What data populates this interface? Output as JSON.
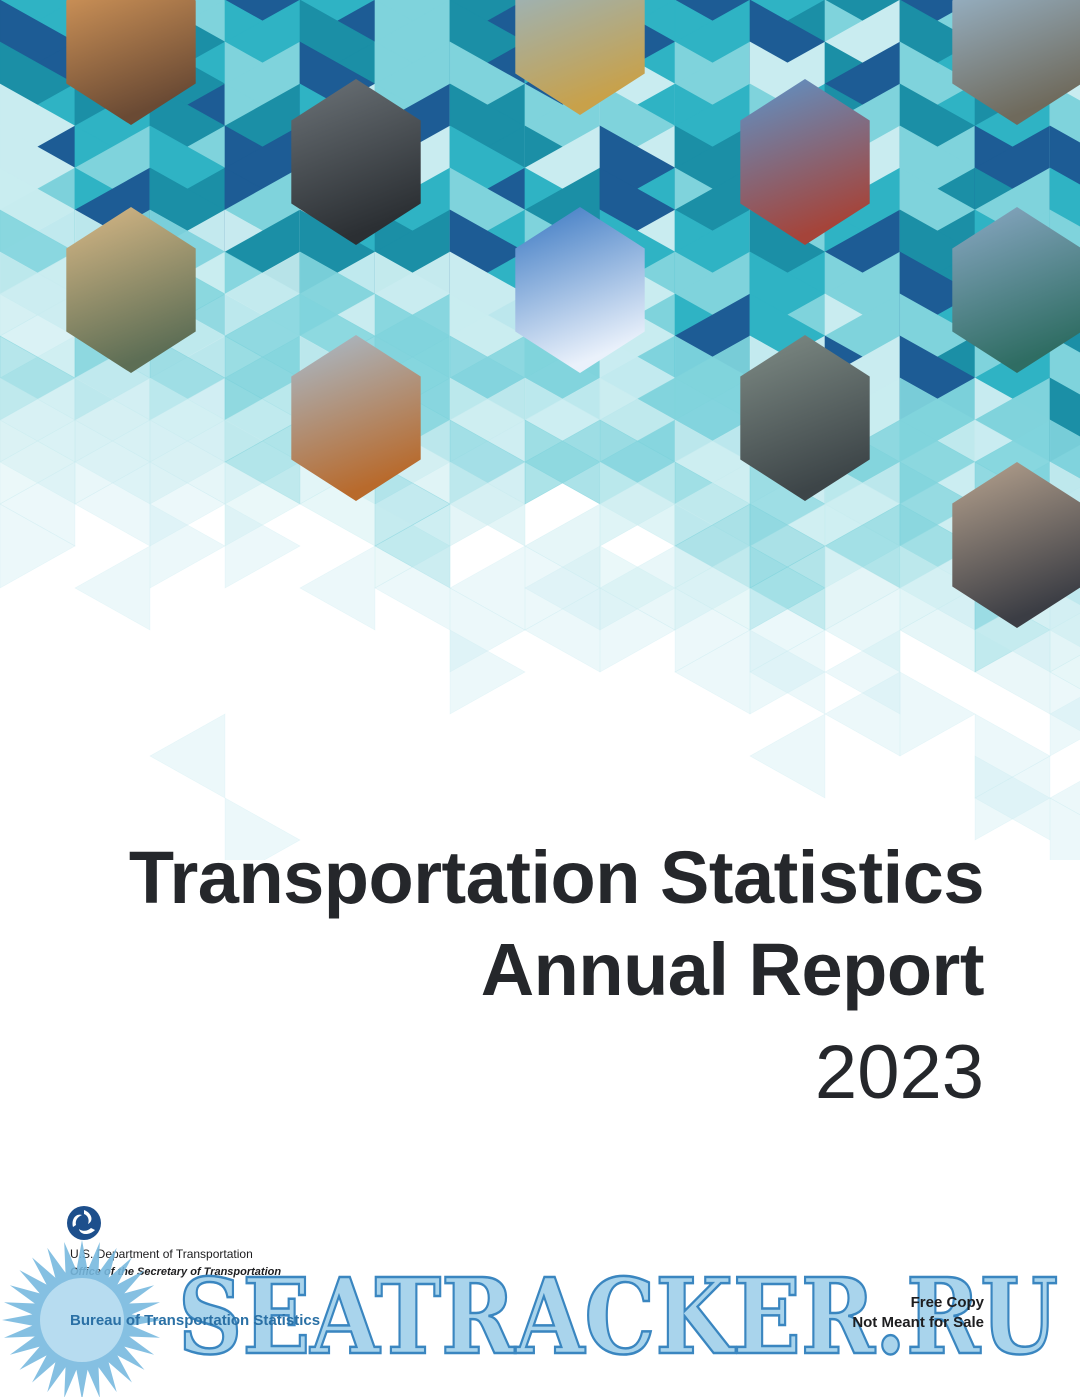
{
  "cover": {
    "title_line_1": "Transportation Statistics",
    "title_line_2": "Annual Report",
    "year": "2023",
    "photo_subjects": [
      "students-walking",
      "city-bus",
      "pipeline",
      "ev-charging",
      "container-ship",
      "freight-truck",
      "airplane",
      "steel-bridge",
      "freight-train",
      "pedestrians-crosswalk",
      "cyclist"
    ]
  },
  "agency": {
    "department": "U.S. Department of Transportation",
    "office": "Office of the Secretary of Transportation",
    "bureau": "Bureau of Transportation Statistics"
  },
  "notice": {
    "line_1": "Free Copy",
    "line_2": "Not Meant for Sale"
  },
  "watermark": {
    "text": "SEATRACKER.RU"
  },
  "colors": {
    "teal_dark": "#1b8fa6",
    "teal": "#2fb3c4",
    "teal_light": "#7fd3dc",
    "teal_pale": "#c9ecf0",
    "navy": "#1d5c95",
    "title_text": "#25272b",
    "watermark_blue": "#5aa6d2"
  }
}
